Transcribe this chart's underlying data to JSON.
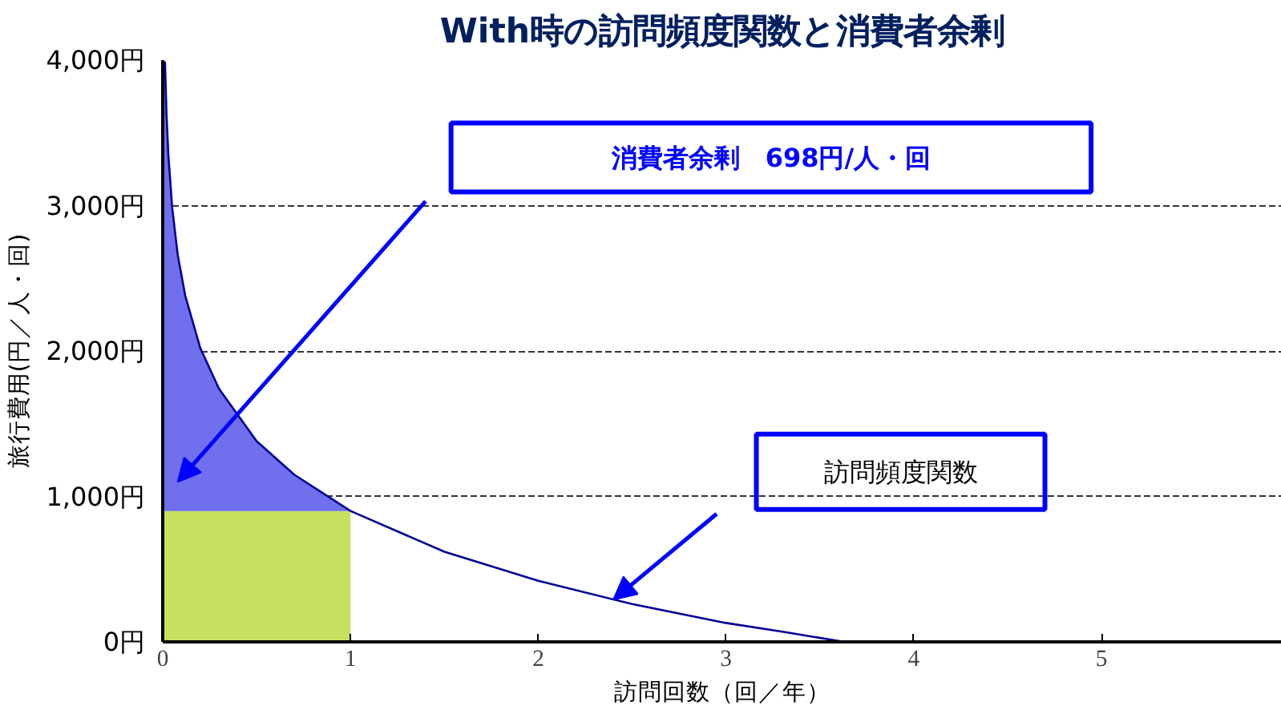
{
  "chart_data": {
    "type": "line",
    "title": "With時の訪問頻度関数と消費者余剰",
    "xlabel": "訪問回数（回／年）",
    "ylabel": "旅行費用(円／人・回)",
    "xlim": [
      0,
      5.96
    ],
    "ylim": [
      0,
      4000
    ],
    "xticks": [
      0,
      1,
      2,
      3,
      4,
      5
    ],
    "yticks": [
      {
        "value": 0,
        "label": "0円"
      },
      {
        "value": 1000,
        "label": "1,000円"
      },
      {
        "value": 2000,
        "label": "2,000円"
      },
      {
        "value": 3000,
        "label": "3,000円"
      },
      {
        "value": 4000,
        "label": "4,000円"
      }
    ],
    "grid": "y",
    "line_style": "solid",
    "marker": "none",
    "stacked": true,
    "series": [
      {
        "type": "area",
        "color": "#c8e060",
        "x": [
          0,
          0.012,
          0.02,
          0.03,
          0.05,
          0.08,
          0.12,
          0.2,
          0.3,
          0.5,
          0.7,
          1.0
        ],
        "values": [
          900,
          900,
          900,
          900,
          900,
          900,
          900,
          900,
          900,
          900,
          900,
          900
        ]
      },
      {
        "type": "area",
        "color": "#7070ee",
        "x": [
          0,
          0.012,
          0.02,
          0.03,
          0.05,
          0.08,
          0.12,
          0.2,
          0.3,
          0.5,
          0.7,
          1.0
        ],
        "values": [
          3100,
          3090,
          2730,
          2450,
          2090,
          1760,
          1480,
          1120,
          840,
          480,
          250,
          0
        ]
      },
      {
        "color": "#000099",
        "x": [
          0.012,
          0.02,
          0.03,
          0.05,
          0.08,
          0.12,
          0.2,
          0.3,
          0.5,
          0.7,
          1.0,
          1.5,
          2.0,
          2.5,
          3.0,
          3.3,
          3.63
        ],
        "values": [
          3990,
          3630,
          3350,
          2990,
          2660,
          2380,
          2020,
          1740,
          1380,
          1150,
          900,
          620,
          420,
          260,
          130,
          70,
          0
        ]
      }
    ],
    "annotations": [
      "消費者余剰　698円/人・回",
      "訪問頻度関数"
    ]
  }
}
